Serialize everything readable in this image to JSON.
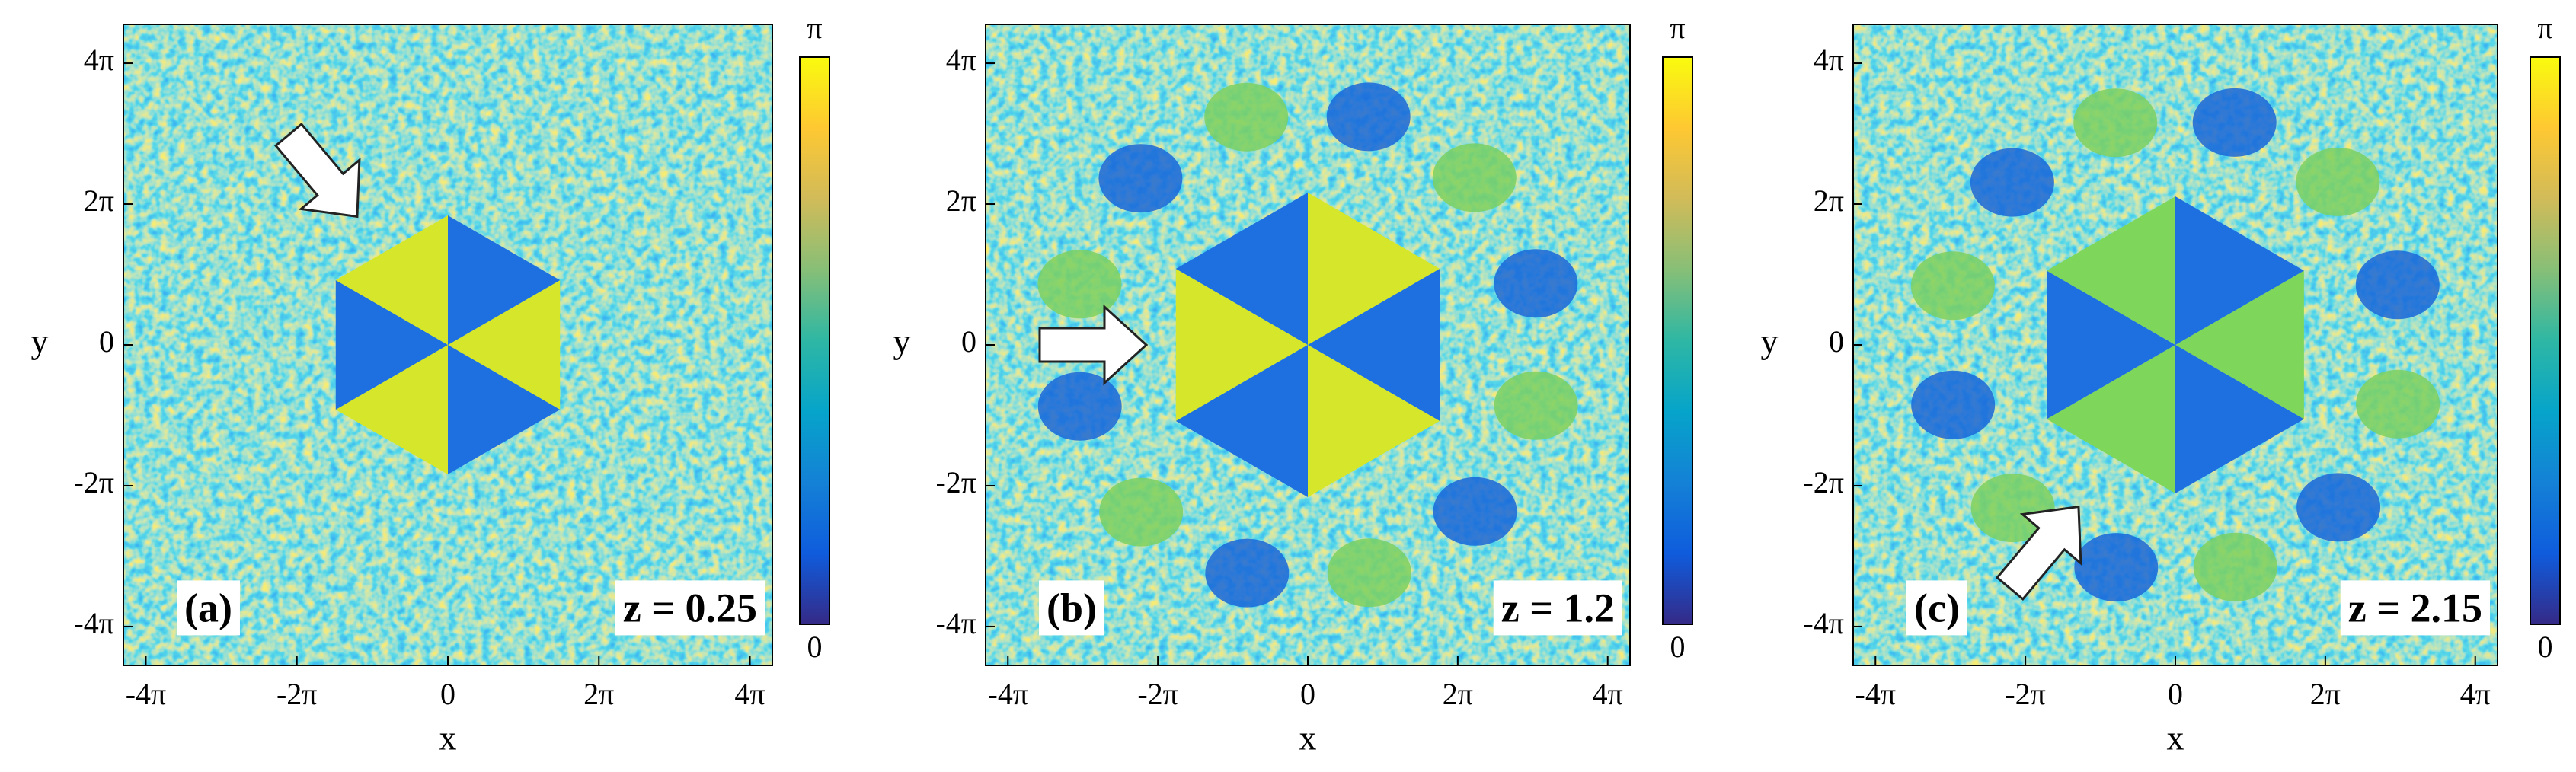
{
  "chart_data": [
    {
      "type": "heatmap",
      "panel_label": "(a)",
      "annotation": "z = 0.25",
      "xlabel": "x",
      "ylabel": "y",
      "xlim": [
        -13.5,
        13.5
      ],
      "ylim": [
        -14.3,
        14.3
      ],
      "xticks": [
        {
          "value": -12.566,
          "label": "-4π"
        },
        {
          "value": -6.283,
          "label": "-2π"
        },
        0,
        {
          "value": 6.283,
          "label": "2π"
        },
        {
          "value": 12.566,
          "label": "4π"
        }
      ],
      "yticks": [
        {
          "value": -12.566,
          "label": "-4π"
        },
        {
          "value": -6.283,
          "label": "-2π"
        },
        0,
        {
          "value": 6.283,
          "label": "2π"
        },
        {
          "value": 12.566,
          "label": "4π"
        }
      ],
      "clim": [
        0,
        3.1416
      ],
      "cticks": [
        0,
        {
          "value": 3.1416,
          "label": "π"
        }
      ],
      "colormap": [
        "#352a87",
        "#0f5cdd",
        "#1481d6",
        "#06a4ca",
        "#2eb7a4",
        "#87bf77",
        "#d1bb59",
        "#fec832",
        "#f9fb0e"
      ]
    },
    {
      "type": "heatmap",
      "panel_label": "(b)",
      "annotation": "z = 1.2",
      "xlabel": "x",
      "ylabel": "y",
      "xlim": [
        -13.5,
        13.5
      ],
      "ylim": [
        -14.3,
        14.3
      ],
      "xticks": [
        {
          "value": -12.566,
          "label": "-4π"
        },
        {
          "value": -6.283,
          "label": "-2π"
        },
        0,
        {
          "value": 6.283,
          "label": "2π"
        },
        {
          "value": 12.566,
          "label": "4π"
        }
      ],
      "yticks": [
        {
          "value": -12.566,
          "label": "-4π"
        },
        {
          "value": -6.283,
          "label": "-2π"
        },
        0,
        {
          "value": 6.283,
          "label": "2π"
        },
        {
          "value": 12.566,
          "label": "4π"
        }
      ],
      "clim": [
        0,
        3.1416
      ],
      "cticks": [
        0,
        {
          "value": 3.1416,
          "label": "π"
        }
      ],
      "colormap": [
        "#352a87",
        "#0f5cdd",
        "#1481d6",
        "#06a4ca",
        "#2eb7a4",
        "#87bf77",
        "#d1bb59",
        "#fec832",
        "#f9fb0e"
      ]
    },
    {
      "type": "heatmap",
      "panel_label": "(c)",
      "annotation": "z = 2.15",
      "xlabel": "x",
      "ylabel": "y",
      "xlim": [
        -13.5,
        13.5
      ],
      "ylim": [
        -14.3,
        14.3
      ],
      "xticks": [
        {
          "value": -12.566,
          "label": "-4π"
        },
        {
          "value": -6.283,
          "label": "-2π"
        },
        0,
        {
          "value": 6.283,
          "label": "2π"
        },
        {
          "value": 12.566,
          "label": "4π"
        }
      ],
      "yticks": [
        {
          "value": -12.566,
          "label": "-4π"
        },
        {
          "value": -6.283,
          "label": "-2π"
        },
        0,
        {
          "value": 6.283,
          "label": "2π"
        },
        {
          "value": 12.566,
          "label": "4π"
        }
      ],
      "clim": [
        0,
        3.1416
      ],
      "cticks": [
        0,
        {
          "value": 3.1416,
          "label": "π"
        }
      ],
      "colormap": [
        "#352a87",
        "#0f5cdd",
        "#1481d6",
        "#06a4ca",
        "#2eb7a4",
        "#87bf77",
        "#d1bb59",
        "#fec832",
        "#f9fb0e"
      ]
    }
  ]
}
